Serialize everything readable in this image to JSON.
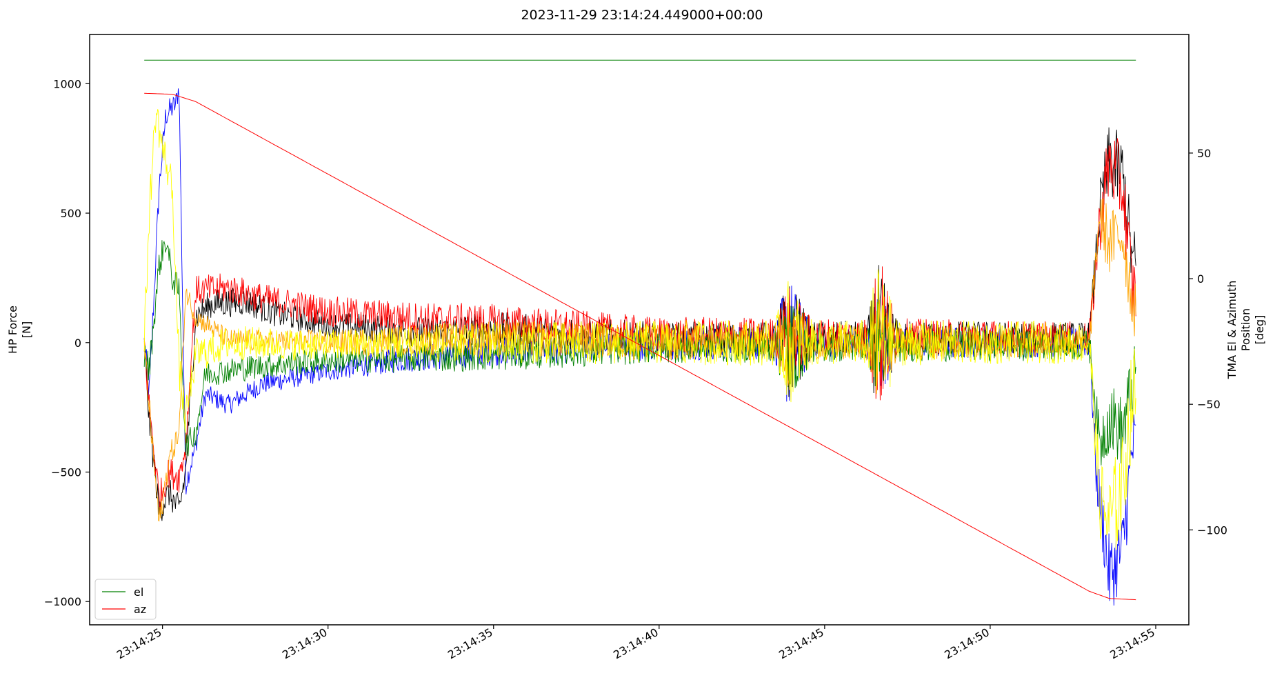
{
  "chart_data": {
    "type": "line",
    "title": "2023-11-29 23:14:24.449000+00:00",
    "ylabel_left": [
      "HP Force",
      "[N]"
    ],
    "ylabel_right": [
      "TMA El & Azimuth",
      "Position",
      "[deg]"
    ],
    "xlabel": "",
    "x_ticks": [
      "23:14:25",
      "23:14:30",
      "23:14:35",
      "23:14:40",
      "23:14:45",
      "23:14:50",
      "23:14:55"
    ],
    "x_tick_seconds": [
      25,
      30,
      35,
      40,
      45,
      50,
      55
    ],
    "xlim_seconds": [
      22.8,
      56.0
    ],
    "x_start_seconds": 24.449,
    "x_end_seconds": 54.4,
    "left_yticks": [
      -1000,
      -500,
      0,
      500,
      1000
    ],
    "left_ylim": [
      -1090,
      1190
    ],
    "right_yticks": [
      -100,
      -50,
      0,
      50
    ],
    "right_ylim": [
      -137.8,
      97.2
    ],
    "legend": {
      "placement": "lower-left",
      "entries": [
        {
          "label": "el",
          "color": "#008000"
        },
        {
          "label": "az",
          "color": "#ff0000"
        }
      ]
    },
    "tma_series": [
      {
        "name": "el",
        "axis": "right",
        "color": "#008000",
        "constant_value": 87.0
      },
      {
        "name": "az",
        "axis": "right",
        "color": "#ff0000",
        "points": [
          [
            24.449,
            73.8
          ],
          [
            25.3,
            73.4
          ],
          [
            26.0,
            70.5
          ],
          [
            53.0,
            -124.5
          ],
          [
            53.6,
            -127.3
          ],
          [
            54.4,
            -127.8
          ]
        ]
      }
    ],
    "force_series": [
      {
        "color": "#0000ff",
        "profile": [
          [
            24.45,
            0
          ],
          [
            24.6,
            -200
          ],
          [
            24.9,
            600
          ],
          [
            25.1,
            880
          ],
          [
            25.4,
            920
          ],
          [
            25.5,
            990
          ],
          [
            25.7,
            -550
          ],
          [
            26.0,
            -400
          ],
          [
            26.3,
            -200
          ],
          [
            27.0,
            -240
          ],
          [
            28.0,
            -160
          ],
          [
            30.0,
            -110
          ],
          [
            32.0,
            -70
          ],
          [
            35.0,
            -30
          ],
          [
            40.0,
            0
          ],
          [
            43.5,
            0
          ],
          [
            43.9,
            0
          ],
          [
            46.5,
            0
          ],
          [
            53.0,
            0
          ],
          [
            53.2,
            -500
          ],
          [
            53.6,
            -900
          ],
          [
            54.0,
            -800
          ],
          [
            54.3,
            -400
          ]
        ],
        "noise": [
          [
            24.45,
            60
          ],
          [
            26.0,
            40
          ],
          [
            30.0,
            40
          ],
          [
            35.0,
            60
          ],
          [
            43.5,
            70
          ],
          [
            43.9,
            280
          ],
          [
            44.6,
            60
          ],
          [
            46.3,
            60
          ],
          [
            46.6,
            240
          ],
          [
            47.2,
            60
          ],
          [
            53.0,
            60
          ],
          [
            53.5,
            150
          ],
          [
            54.4,
            150
          ]
        ]
      },
      {
        "color": "#000000",
        "profile": [
          [
            24.45,
            -10
          ],
          [
            24.6,
            -300
          ],
          [
            24.9,
            -650
          ],
          [
            25.2,
            -580
          ],
          [
            25.5,
            -650
          ],
          [
            25.7,
            -500
          ],
          [
            26.0,
            100
          ],
          [
            26.5,
            150
          ],
          [
            27.5,
            160
          ],
          [
            28.5,
            110
          ],
          [
            30.0,
            70
          ],
          [
            33.0,
            40
          ],
          [
            35.0,
            50
          ],
          [
            40.0,
            10
          ],
          [
            53.0,
            20
          ],
          [
            53.3,
            500
          ],
          [
            53.6,
            700
          ],
          [
            54.0,
            650
          ],
          [
            54.3,
            300
          ]
        ],
        "noise": [
          [
            24.45,
            60
          ],
          [
            26.0,
            60
          ],
          [
            30.0,
            50
          ],
          [
            35.0,
            70
          ],
          [
            43.5,
            70
          ],
          [
            43.9,
            250
          ],
          [
            44.6,
            70
          ],
          [
            46.3,
            70
          ],
          [
            46.6,
            300
          ],
          [
            47.2,
            70
          ],
          [
            53.0,
            60
          ],
          [
            53.5,
            150
          ],
          [
            54.4,
            150
          ]
        ]
      },
      {
        "color": "#ff0000",
        "profile": [
          [
            24.45,
            0
          ],
          [
            24.6,
            -250
          ],
          [
            24.9,
            -600
          ],
          [
            25.2,
            -500
          ],
          [
            25.5,
            -520
          ],
          [
            25.7,
            -400
          ],
          [
            26.0,
            200
          ],
          [
            27.0,
            210
          ],
          [
            28.0,
            170
          ],
          [
            30.0,
            120
          ],
          [
            33.0,
            90
          ],
          [
            35.0,
            80
          ],
          [
            38.0,
            50
          ],
          [
            40.0,
            30
          ],
          [
            53.0,
            20
          ],
          [
            53.3,
            450
          ],
          [
            53.6,
            700
          ],
          [
            54.0,
            600
          ],
          [
            54.3,
            200
          ]
        ],
        "noise": [
          [
            24.45,
            60
          ],
          [
            26.0,
            60
          ],
          [
            30.0,
            60
          ],
          [
            35.0,
            70
          ],
          [
            43.5,
            70
          ],
          [
            43.9,
            200
          ],
          [
            44.6,
            70
          ],
          [
            46.3,
            70
          ],
          [
            46.6,
            350
          ],
          [
            47.2,
            70
          ],
          [
            53.0,
            60
          ],
          [
            53.5,
            150
          ],
          [
            54.4,
            150
          ]
        ]
      },
      {
        "color": "#008000",
        "profile": [
          [
            24.45,
            -50
          ],
          [
            24.6,
            -100
          ],
          [
            24.9,
            300
          ],
          [
            25.1,
            400
          ],
          [
            25.3,
            250
          ],
          [
            25.5,
            200
          ],
          [
            25.7,
            -400
          ],
          [
            26.0,
            -350
          ],
          [
            26.3,
            -120
          ],
          [
            28.0,
            -90
          ],
          [
            30.0,
            -70
          ],
          [
            35.0,
            -50
          ],
          [
            40.0,
            -20
          ],
          [
            53.0,
            -10
          ],
          [
            53.3,
            -400
          ],
          [
            53.6,
            -280
          ],
          [
            54.0,
            -350
          ],
          [
            54.3,
            -150
          ]
        ],
        "noise": [
          [
            24.45,
            60
          ],
          [
            26.0,
            50
          ],
          [
            30.0,
            50
          ],
          [
            35.0,
            60
          ],
          [
            43.5,
            60
          ],
          [
            43.9,
            220
          ],
          [
            44.6,
            60
          ],
          [
            46.3,
            60
          ],
          [
            46.6,
            200
          ],
          [
            47.2,
            60
          ],
          [
            53.0,
            60
          ],
          [
            53.5,
            140
          ],
          [
            54.4,
            140
          ]
        ]
      },
      {
        "color": "#ffa500",
        "profile": [
          [
            24.45,
            0
          ],
          [
            24.6,
            -250
          ],
          [
            24.9,
            -700
          ],
          [
            25.2,
            -450
          ],
          [
            25.5,
            -350
          ],
          [
            25.7,
            200
          ],
          [
            26.0,
            100
          ],
          [
            27.0,
            10
          ],
          [
            30.0,
            0
          ],
          [
            35.0,
            20
          ],
          [
            40.0,
            0
          ],
          [
            53.0,
            0
          ],
          [
            53.3,
            500
          ],
          [
            53.6,
            380
          ],
          [
            54.0,
            420
          ],
          [
            54.3,
            150
          ]
        ],
        "noise": [
          [
            24.45,
            60
          ],
          [
            26.0,
            40
          ],
          [
            30.0,
            50
          ],
          [
            35.0,
            70
          ],
          [
            43.5,
            70
          ],
          [
            43.9,
            200
          ],
          [
            44.6,
            70
          ],
          [
            46.3,
            70
          ],
          [
            46.6,
            200
          ],
          [
            47.2,
            70
          ],
          [
            53.0,
            50
          ],
          [
            53.5,
            130
          ],
          [
            54.4,
            130
          ]
        ]
      },
      {
        "color": "#ffff00",
        "profile": [
          [
            24.45,
            0
          ],
          [
            24.6,
            500
          ],
          [
            24.8,
            900
          ],
          [
            25.0,
            750
          ],
          [
            25.3,
            600
          ],
          [
            25.5,
            -100
          ],
          [
            25.7,
            -300
          ],
          [
            26.0,
            -50
          ],
          [
            27.0,
            0
          ],
          [
            30.0,
            -10
          ],
          [
            35.0,
            0
          ],
          [
            40.0,
            0
          ],
          [
            53.0,
            0
          ],
          [
            53.3,
            -600
          ],
          [
            53.6,
            -700
          ],
          [
            54.0,
            -550
          ],
          [
            54.3,
            -200
          ]
        ],
        "noise": [
          [
            24.45,
            80
          ],
          [
            26.0,
            70
          ],
          [
            30.0,
            60
          ],
          [
            35.0,
            80
          ],
          [
            43.5,
            90
          ],
          [
            43.9,
            250
          ],
          [
            44.6,
            90
          ],
          [
            46.3,
            90
          ],
          [
            46.6,
            330
          ],
          [
            47.2,
            90
          ],
          [
            53.0,
            80
          ],
          [
            53.5,
            200
          ],
          [
            54.4,
            200
          ]
        ]
      }
    ]
  }
}
